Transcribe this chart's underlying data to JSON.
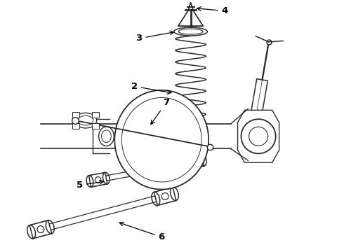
{
  "bg_color": "#ffffff",
  "line_color": "#2a2a2a",
  "fig_width": 4.9,
  "fig_height": 3.6,
  "dpi": 100,
  "label_fontsize": 9.5
}
